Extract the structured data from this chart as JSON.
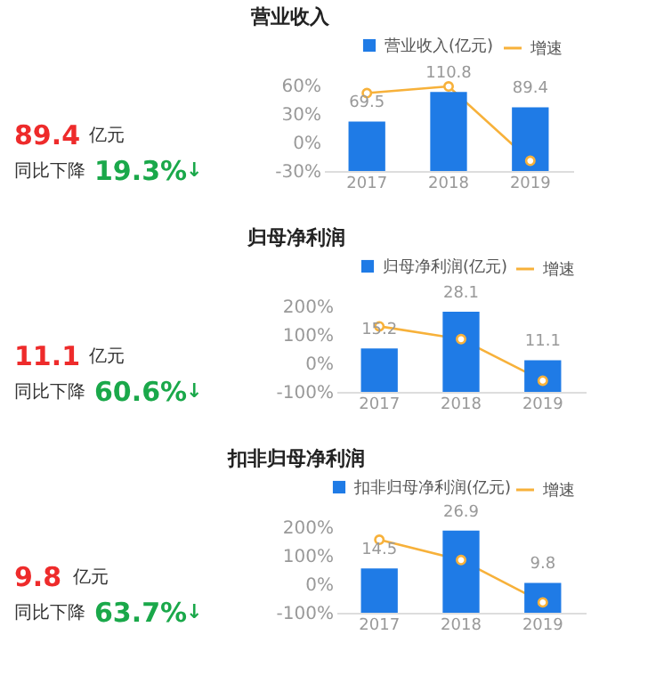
{
  "chart_data": [
    {
      "type": "other",
      "annotations": [
        "89.4",
        "亿元",
        "同比下降",
        "19.3%",
        "↓"
      ]
    },
    {
      "type": "bar",
      "title": "营业收入",
      "categories": [
        "2017",
        "2018",
        "2019"
      ],
      "legend": "top right",
      "marker": "circle",
      "ylim": [
        -30,
        60
      ],
      "yticks": [
        {
          "value": -30,
          "label": "-30%"
        },
        {
          "value": 0,
          "label": "0%"
        },
        {
          "value": 30,
          "label": "30%"
        },
        {
          "value": 60,
          "label": "60%"
        }
      ],
      "series": [
        {
          "name": "营业收入(亿元)",
          "type": "bar",
          "axis": "y2",
          "color": "#1f7be6",
          "values": [
            69.5,
            110.8,
            89.4
          ],
          "value_labels": [
            "69.5",
            "110.8",
            "89.4"
          ]
        },
        {
          "name": "增速",
          "type": "line",
          "color": "#f7b13a",
          "values": [
            52,
            59,
            -19.3
          ]
        }
      ]
    },
    {
      "type": "other",
      "annotations": [
        "11.1",
        "亿元",
        "同比下降",
        "60.6%",
        "↓"
      ]
    },
    {
      "type": "bar",
      "title": "归母净利润",
      "categories": [
        "2017",
        "2018",
        "2019"
      ],
      "legend": "top right",
      "marker": "circle",
      "ylim": [
        -100,
        200
      ],
      "yticks": [
        {
          "value": -100,
          "label": "-100%"
        },
        {
          "value": 0,
          "label": "0%"
        },
        {
          "value": 100,
          "label": "100%"
        },
        {
          "value": 200,
          "label": "200%"
        }
      ],
      "series": [
        {
          "name": "归母净利润(亿元)",
          "type": "bar",
          "axis": "y2",
          "color": "#1f7be6",
          "values": [
            15.2,
            28.1,
            11.1
          ],
          "value_labels": [
            "15.2",
            "28.1",
            "11.1"
          ]
        },
        {
          "name": "增速",
          "type": "line",
          "color": "#f7b13a",
          "values": [
            130,
            85,
            -60.6
          ]
        }
      ]
    },
    {
      "type": "other",
      "annotations": [
        "9.8",
        "亿元",
        "同比下降",
        "63.7%",
        "↓"
      ]
    },
    {
      "type": "bar",
      "title": "扣非归母净利润",
      "categories": [
        "2017",
        "2018",
        "2019"
      ],
      "legend": "top right",
      "marker": "circle",
      "ylim": [
        -100,
        200
      ],
      "yticks": [
        {
          "value": -100,
          "label": "-100%"
        },
        {
          "value": 0,
          "label": "0%"
        },
        {
          "value": 100,
          "label": "100%"
        },
        {
          "value": 200,
          "label": "200%"
        }
      ],
      "series": [
        {
          "name": "扣非归母净利润(亿元)",
          "type": "bar",
          "axis": "y2",
          "color": "#1f7be6",
          "values": [
            14.5,
            26.9,
            9.8
          ],
          "value_labels": [
            "14.5",
            "26.9",
            "9.8"
          ]
        },
        {
          "name": "增速",
          "type": "line",
          "color": "#f7b13a",
          "values": [
            156,
            85,
            -63.7
          ]
        }
      ]
    }
  ]
}
